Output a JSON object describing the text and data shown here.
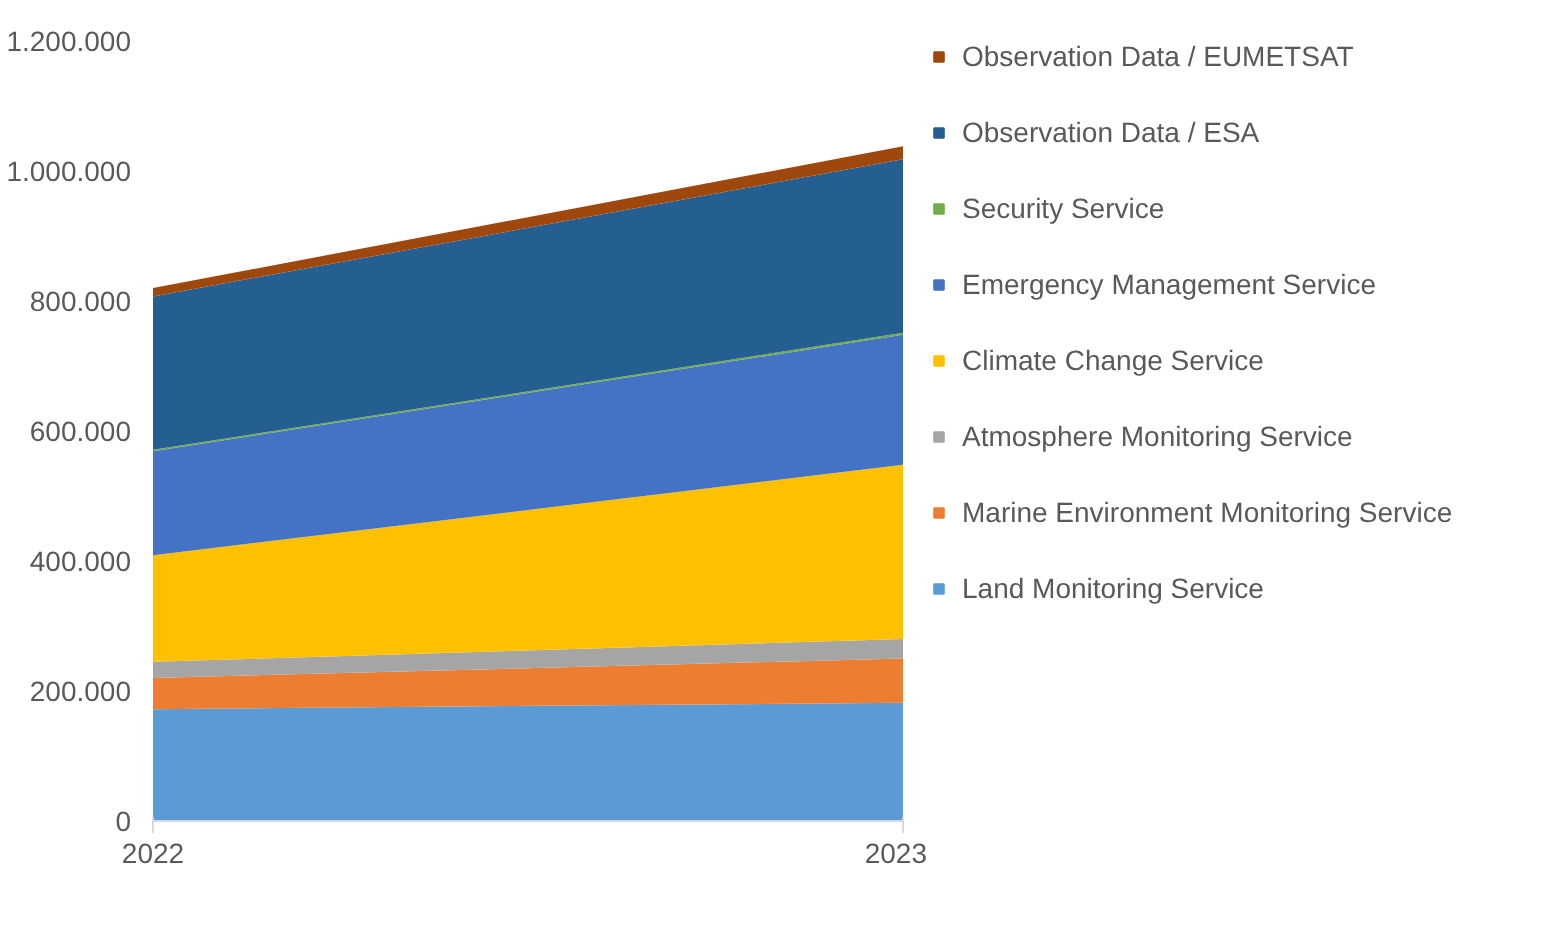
{
  "chart_data": {
    "type": "area",
    "stacked": true,
    "x": [
      2022,
      2023
    ],
    "xlim": [
      2022,
      2023
    ],
    "xticks": [
      2022,
      2023
    ],
    "ylim": [
      0,
      1200000
    ],
    "yticks": [
      {
        "value": 0,
        "label": "0"
      },
      {
        "value": 200000,
        "label": "200.000"
      },
      {
        "value": 400000,
        "label": "400.000"
      },
      {
        "value": 600000,
        "label": "600.000"
      },
      {
        "value": 800000,
        "label": "800.000"
      },
      {
        "value": 1000000,
        "label": "1.000.000"
      },
      {
        "value": 1200000,
        "label": "1.200.000"
      }
    ],
    "grid": false,
    "legend": "right",
    "series": [
      {
        "name": "Land Monitoring Service",
        "color": "#5b9bd5",
        "values": [
          172000,
          182000
        ]
      },
      {
        "name": "Marine Environment Monitoring Service",
        "color": "#ed7d31",
        "values": [
          48000,
          68000
        ]
      },
      {
        "name": "Atmosphere Monitoring Service",
        "color": "#a5a5a5",
        "values": [
          25000,
          30000
        ]
      },
      {
        "name": "Climate Change Service",
        "color": "#ffc000",
        "values": [
          164000,
          268000
        ]
      },
      {
        "name": "Emergency Management Service",
        "color": "#4472c4",
        "values": [
          160000,
          200000
        ]
      },
      {
        "name": "Security Service",
        "color": "#70ad47",
        "values": [
          2000,
          3000
        ]
      },
      {
        "name": "Observation Data / ESA",
        "color": "#255e91",
        "values": [
          236000,
          267000
        ]
      },
      {
        "name": "Observation Data / EUMETSAT",
        "color": "#9e480e",
        "values": [
          13000,
          20000
        ]
      }
    ]
  }
}
